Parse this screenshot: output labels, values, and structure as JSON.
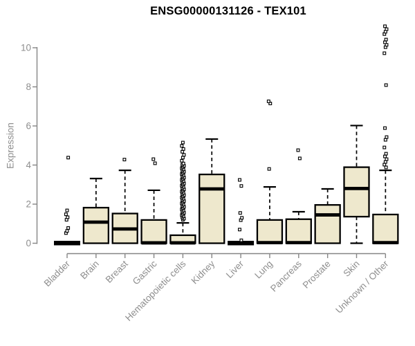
{
  "chart_data": {
    "type": "boxplot",
    "title": "ENSG00000131126 - TEX101",
    "ylabel": "Expression",
    "xlabel": "",
    "yticks": [
      0,
      2,
      4,
      6,
      8,
      10
    ],
    "ylim": [
      0,
      11.2
    ],
    "grid": false,
    "legend": "none",
    "box_fill": "#EEE8CD",
    "box_stroke": "#000000",
    "axis_color": "#858585",
    "label_color": "#8E8E8E",
    "title_color": "#000000",
    "categories": [
      "Bladder",
      "Brain",
      "Breast",
      "Gastric",
      "Hematopoietic cells",
      "Kidney",
      "Liver",
      "Lung",
      "Pancreas",
      "Prostate",
      "Skin",
      "Unknown / Other"
    ],
    "series": [
      {
        "name": "Bladder",
        "q1": 0,
        "median": 0.02,
        "q3": 0.05,
        "whisker_low": 0,
        "whisker_high": 0.05,
        "collapsed": true,
        "outliers": [
          0.52,
          0.63,
          0.78,
          1.2,
          1.33,
          1.48,
          1.68,
          4.38
        ]
      },
      {
        "name": "Brain",
        "q1": 0,
        "median": 1.08,
        "q3": 1.82,
        "whisker_low": 0,
        "whisker_high": 3.31,
        "collapsed": false,
        "outliers": []
      },
      {
        "name": "Breast",
        "q1": 0,
        "median": 0.73,
        "q3": 1.52,
        "whisker_low": 0,
        "whisker_high": 3.73,
        "collapsed": false,
        "outliers": [
          4.28
        ]
      },
      {
        "name": "Gastric",
        "q1": 0,
        "median": 0.02,
        "q3": 1.19,
        "whisker_low": 0,
        "whisker_high": 2.71,
        "collapsed": false,
        "outliers": [
          4.09,
          4.3
        ]
      },
      {
        "name": "Hematopoietic cells",
        "q1": 0,
        "median": 0.02,
        "q3": 0.41,
        "whisker_low": 0,
        "whisker_high": 1.04,
        "collapsed": false,
        "outliers": [
          1.2,
          1.26,
          1.32,
          1.38,
          1.44,
          1.5,
          1.56,
          1.62,
          1.68,
          1.74,
          1.8,
          1.86,
          1.92,
          1.98,
          2.04,
          2.1,
          2.16,
          2.22,
          2.28,
          2.34,
          2.4,
          2.46,
          2.52,
          2.58,
          2.64,
          2.7,
          2.76,
          2.82,
          2.88,
          2.94,
          3.0,
          3.06,
          3.12,
          3.18,
          3.24,
          3.3,
          3.36,
          3.42,
          3.48,
          3.54,
          3.6,
          3.66,
          3.72,
          3.78,
          3.84,
          3.9,
          3.96,
          4.02,
          4.08,
          4.22,
          4.38,
          4.52,
          4.68,
          4.82,
          4.98,
          5.15
        ]
      },
      {
        "name": "Kidney",
        "q1": 0,
        "median": 2.78,
        "q3": 3.52,
        "whisker_low": 0,
        "whisker_high": 5.33,
        "collapsed": false,
        "outliers": []
      },
      {
        "name": "Liver",
        "q1": 0,
        "median": 0.02,
        "q3": 0.05,
        "whisker_low": 0,
        "whisker_high": 0.05,
        "collapsed": true,
        "outliers": [
          0.15,
          0.7,
          1.18,
          1.3,
          1.55,
          2.93,
          3.24
        ]
      },
      {
        "name": "Lung",
        "q1": 0,
        "median": 0.03,
        "q3": 1.19,
        "whisker_low": 0,
        "whisker_high": 2.88,
        "collapsed": false,
        "outliers": [
          3.8,
          7.15,
          7.26
        ]
      },
      {
        "name": "Pancreas",
        "q1": 0,
        "median": 0.03,
        "q3": 1.23,
        "whisker_low": 0,
        "whisker_high": 1.61,
        "collapsed": false,
        "outliers": [
          4.34,
          4.76
        ]
      },
      {
        "name": "Prostate",
        "q1": 0,
        "median": 1.45,
        "q3": 1.96,
        "whisker_low": 0,
        "whisker_high": 2.78,
        "collapsed": false,
        "outliers": []
      },
      {
        "name": "Skin",
        "q1": 1.36,
        "median": 2.8,
        "q3": 3.89,
        "whisker_low": 0,
        "whisker_high": 6.02,
        "collapsed": false,
        "outliers": []
      },
      {
        "name": "Unknown / Other",
        "q1": 0,
        "median": 0.03,
        "q3": 1.47,
        "whisker_low": 0,
        "whisker_high": 3.73,
        "collapsed": false,
        "outliers": [
          3.88,
          4.02,
          4.16,
          4.3,
          4.44,
          4.58,
          4.9,
          5.29,
          5.43,
          5.89,
          8.09,
          9.72,
          10.03,
          10.15,
          10.28,
          10.42,
          10.7,
          10.82,
          10.95,
          11.1
        ]
      }
    ]
  }
}
